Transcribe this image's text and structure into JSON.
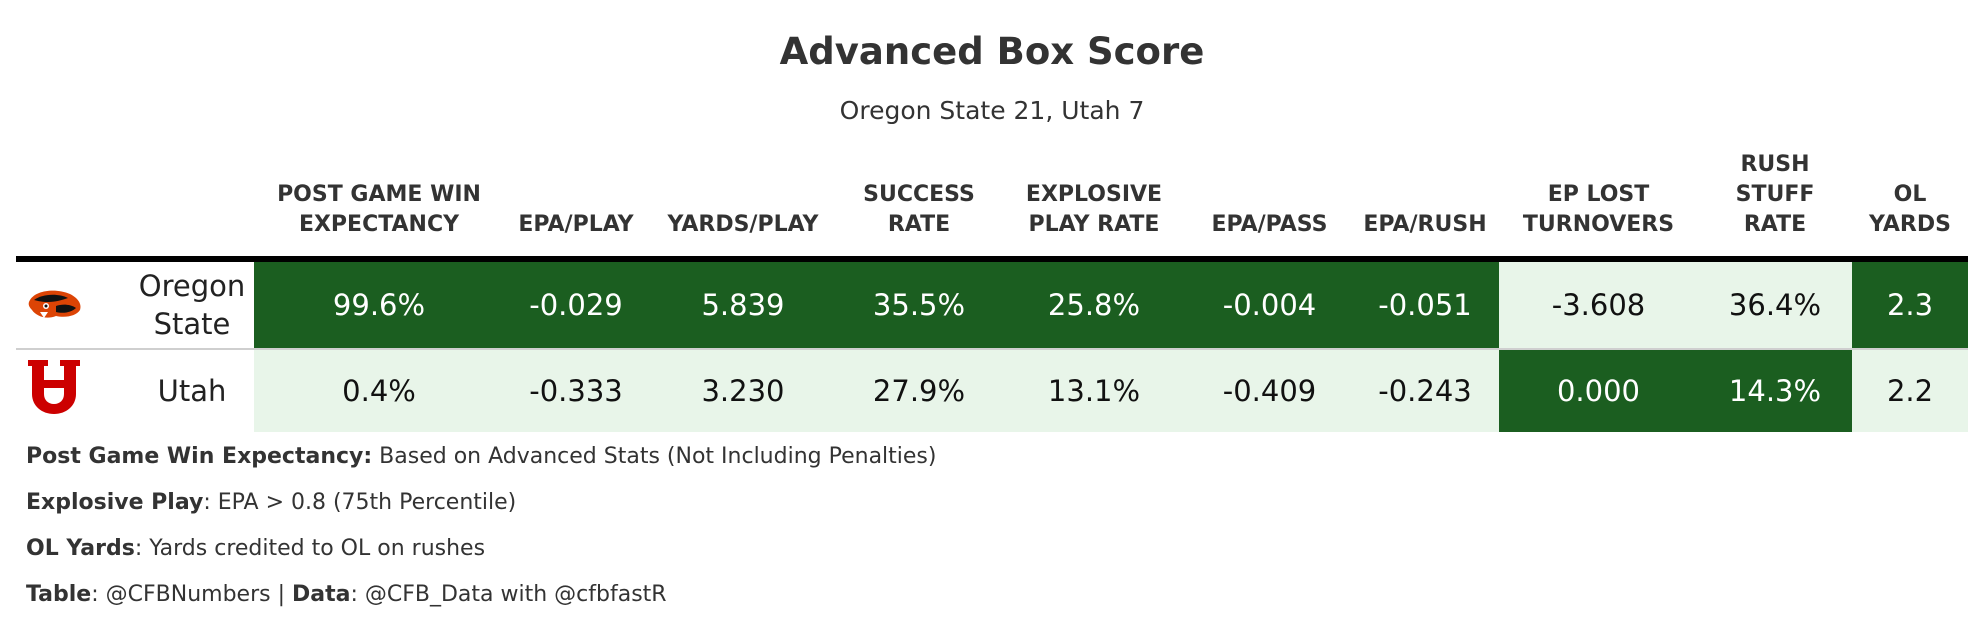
{
  "title": "Advanced Box Score",
  "subtitle": "Oregon State 21, Utah 7",
  "columns": [
    "POST GAME WIN\nEXPECTANCY",
    "EPA/PLAY",
    "YARDS/PLAY",
    "SUCCESS\nRATE",
    "EXPLOSIVE\nPLAY RATE",
    "EPA/PASS",
    "EPA/RUSH",
    "EP LOST\nTURNOVERS",
    "RUSH\nSTUFF\nRATE",
    "OL\nYARDS"
  ],
  "rows": [
    {
      "team": "Oregon\nState",
      "logo": "oregon-state-beaver-logo",
      "values": [
        "99.6%",
        "-0.029",
        "5.839",
        "35.5%",
        "25.8%",
        "-0.004",
        "-0.051",
        "-3.608",
        "36.4%",
        "2.3"
      ],
      "shade": [
        "dark",
        "dark",
        "dark",
        "dark",
        "dark",
        "dark",
        "dark",
        "light",
        "light",
        "dark"
      ]
    },
    {
      "team": "Utah",
      "logo": "utah-u-logo",
      "values": [
        "0.4%",
        "-0.333",
        "3.230",
        "27.9%",
        "13.1%",
        "-0.409",
        "-0.243",
        "0.000",
        "14.3%",
        "2.2"
      ],
      "shade": [
        "light",
        "light",
        "light",
        "light",
        "light",
        "light",
        "light",
        "dark",
        "dark",
        "light"
      ]
    }
  ],
  "colors": {
    "better": "#1b5e20",
    "worse": "#e8f5e9",
    "utah_red": "#cc0000",
    "osu_orange": "#dc4405"
  },
  "notes": [
    {
      "label": "Post Game Win Expectancy:",
      "text": " Based on Advanced Stats (Not Including Penalties)"
    },
    {
      "label": "Explosive Play",
      "text": ": EPA > 0.8 (75th Percentile)"
    },
    {
      "label": "OL Yards",
      "text": ": Yards credited to OL on rushes"
    },
    {
      "label": "Table",
      "text": ": @CFBNumbers | ",
      "label2": "Data",
      "text2": ": @CFB_Data with @cfbfastR"
    }
  ],
  "chart_data": {
    "type": "table",
    "title": "Advanced Box Score",
    "subtitle": "Oregon State 21, Utah 7",
    "columns": [
      "POST GAME WIN EXPECTANCY",
      "EPA/PLAY",
      "YARDS/PLAY",
      "SUCCESS RATE",
      "EXPLOSIVE PLAY RATE",
      "EPA/PASS",
      "EPA/RUSH",
      "EP LOST TURNOVERS",
      "RUSH STUFF RATE",
      "OL YARDS"
    ],
    "rows": [
      {
        "team": "Oregon State",
        "values": [
          "99.6%",
          "-0.029",
          "5.839",
          "35.5%",
          "25.8%",
          "-0.004",
          "-0.051",
          "-3.608",
          "36.4%",
          "2.3"
        ]
      },
      {
        "team": "Utah",
        "values": [
          "0.4%",
          "-0.333",
          "3.230",
          "27.9%",
          "13.1%",
          "-0.409",
          "-0.243",
          "0.000",
          "14.3%",
          "2.2"
        ]
      }
    ]
  }
}
